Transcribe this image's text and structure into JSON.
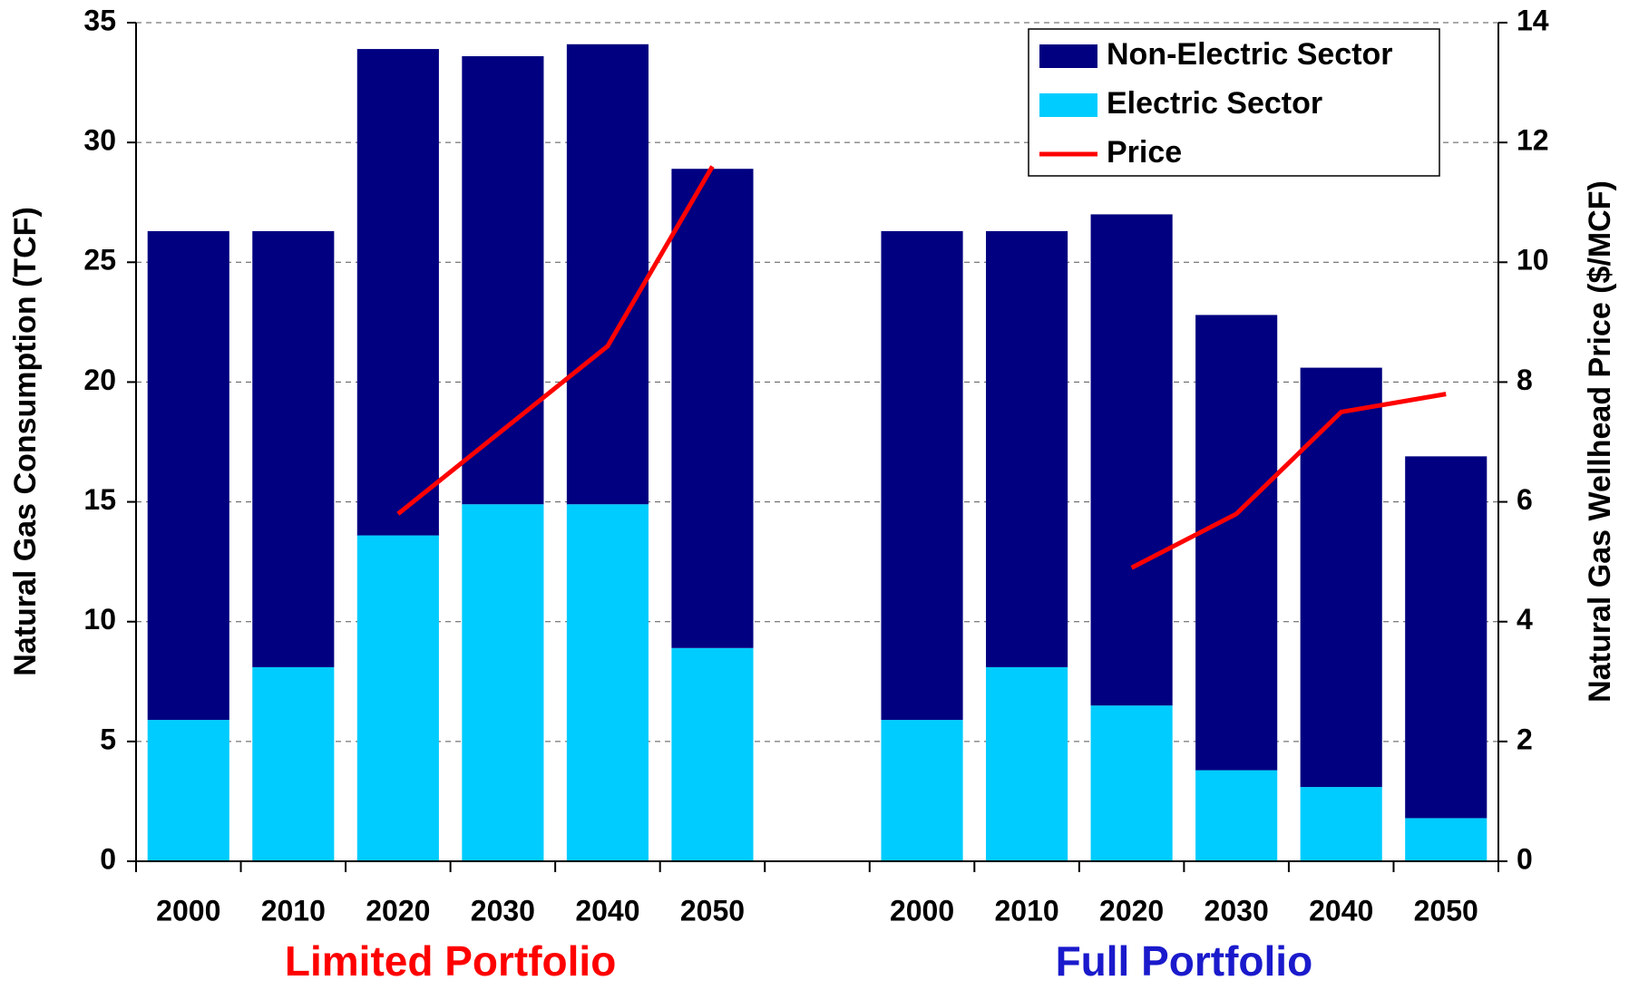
{
  "chart_data": {
    "type": "bar",
    "categories": [
      "2000",
      "2010",
      "2020",
      "2030",
      "2040",
      "2050",
      null,
      "2000",
      "2010",
      "2020",
      "2030",
      "2040",
      "2050"
    ],
    "series": [
      {
        "name": "Non-Electric Sector",
        "color": "#000080",
        "type": "bar",
        "values": [
          20.4,
          18.2,
          20.3,
          18.7,
          19.2,
          20.0,
          null,
          20.4,
          18.2,
          20.5,
          19.0,
          17.5,
          15.1
        ]
      },
      {
        "name": "Electric Sector",
        "color": "#00ccff",
        "type": "bar",
        "values": [
          5.9,
          8.1,
          13.6,
          14.9,
          14.9,
          8.9,
          null,
          5.9,
          8.1,
          6.5,
          3.8,
          3.1,
          1.8
        ]
      },
      {
        "name": "Price",
        "color": "#ff0000",
        "type": "line",
        "axis": "y2",
        "values": [
          null,
          null,
          5.8,
          7.2,
          8.6,
          11.6,
          null,
          null,
          null,
          4.9,
          5.8,
          7.5,
          7.8
        ]
      }
    ],
    "stacked": true,
    "y_label": "Natural Gas Consumption (TCF)",
    "y2_label": "Natural Gas Wellhead Price ($/MCF)",
    "ylim": [
      0,
      35
    ],
    "yticks": [
      0,
      5,
      10,
      15,
      20,
      25,
      30,
      35
    ],
    "y2lim": [
      0,
      14
    ],
    "y2ticks": [
      0,
      2,
      4,
      6,
      8,
      10,
      12,
      14
    ],
    "grid": true,
    "legend": "upper right",
    "annotations": [
      {
        "text": "Limited Portfolio",
        "color": "#ff0000"
      },
      {
        "text": "Full Portfolio",
        "color": "#1a1acc"
      }
    ]
  }
}
